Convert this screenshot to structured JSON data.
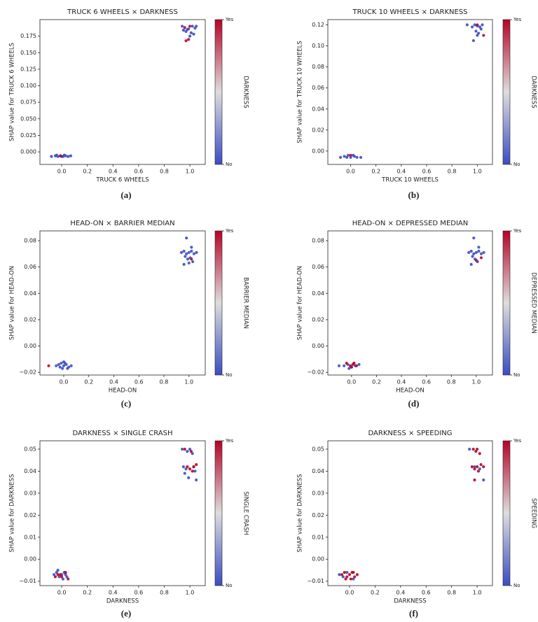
{
  "chart_data": [
    {
      "type": "scatter",
      "title": "TRUCK 6 WHEELS × DARKNESS",
      "xlabel": "TRUCK 6 WHEELS",
      "ylabel": "SHAP value for TRUCK 6 WHEELS",
      "colorbar_label": "DARKNESS",
      "panel_label": "(a)",
      "xlim": [
        -0.17,
        1.12
      ],
      "ylim": [
        -0.019,
        0.2
      ],
      "xticks": [
        {
          "value": 0,
          "label": "0.0"
        },
        0.2,
        0.4,
        0.6,
        0.8,
        {
          "value": 1,
          "label": "1.0"
        }
      ],
      "yticks": [
        {
          "value": 0,
          "label": "0.000"
        },
        {
          "value": 0.025,
          "label": "0.025"
        },
        {
          "value": 0.05,
          "label": "0.050"
        },
        {
          "value": 0.075,
          "label": "0.075"
        },
        {
          "value": 0.1,
          "label": "0.100"
        },
        {
          "value": 0.125,
          "label": "0.125"
        },
        {
          "value": 0.15,
          "label": "0.150"
        },
        {
          "value": 0.175,
          "label": "0.175"
        }
      ],
      "series": [
        {
          "name": "No",
          "color": "#3b4cc0",
          "x": [
            -0.08,
            -0.05,
            -0.03,
            -0.01,
            0.01,
            0.03,
            0.05,
            0.07,
            -0.04,
            0.02,
            0.0,
            0.94,
            0.98,
            1.02,
            1.04,
            1.05,
            0.97,
            1.01,
            1.03,
            0.99,
            1.0,
            0.95
          ],
          "values": [
            -0.007,
            -0.006,
            -0.007,
            -0.006,
            -0.007,
            -0.006,
            -0.007,
            -0.006,
            -0.005,
            -0.005,
            -0.007,
            0.19,
            0.185,
            0.19,
            0.187,
            0.19,
            0.182,
            0.18,
            0.178,
            0.186,
            0.175,
            0.184
          ]
        },
        {
          "name": "Yes",
          "color": "#b40426",
          "x": [
            -0.01,
            0.97,
            0.99,
            1.0,
            0.96
          ],
          "values": [
            -0.006,
            0.168,
            0.17,
            0.19,
            0.188
          ]
        }
      ]
    },
    {
      "type": "scatter",
      "title": "TRUCK 10 WHEELS × DARKNESS",
      "xlabel": "TRUCK 10 WHEELS",
      "ylabel": "SHAP value for TRUCK 10 WHEELS",
      "colorbar_label": "DARKNESS",
      "panel_label": "(b)",
      "xlim": [
        -0.18,
        1.12
      ],
      "ylim": [
        -0.0127,
        0.125
      ],
      "xticks": [
        {
          "value": 0,
          "label": "0.0"
        },
        0.2,
        0.4,
        0.6,
        0.8,
        {
          "value": 1,
          "label": "1.0"
        }
      ],
      "yticks": [
        {
          "value": 0,
          "label": "0.00"
        },
        0.02,
        0.04,
        0.06,
        {
          "value": 0.08,
          "label": "0.08"
        },
        {
          "value": 0.1,
          "label": "0.10"
        },
        0.12
      ],
      "series": [
        {
          "name": "No",
          "color": "#3b4cc0",
          "x": [
            -0.08,
            -0.05,
            -0.03,
            0.0,
            0.03,
            0.05,
            0.08,
            -0.02,
            0.02,
            0.92,
            0.96,
            0.98,
            1.0,
            1.02,
            1.04,
            0.99,
            1.01,
            0.97,
            1.03,
            1.0
          ],
          "values": [
            -0.006,
            -0.005,
            -0.006,
            -0.006,
            -0.005,
            -0.006,
            -0.006,
            -0.004,
            -0.004,
            0.12,
            0.118,
            0.12,
            0.119,
            0.118,
            0.12,
            0.114,
            0.112,
            0.105,
            0.116,
            0.11
          ]
        },
        {
          "name": "Yes",
          "color": "#b40426",
          "x": [
            0.0,
            1.05,
            1.0
          ],
          "values": [
            -0.004,
            0.11,
            0.12
          ]
        }
      ]
    },
    {
      "type": "scatter",
      "title": "HEAD-ON × BARRIER MEDIAN",
      "xlabel": "HEAD-ON",
      "ylabel": "SHAP value for HEAD-ON",
      "colorbar_label": "BARRIER MEDIAN",
      "panel_label": "(c)",
      "xlim": [
        -0.19,
        1.13
      ],
      "ylim": [
        -0.022,
        0.0874
      ],
      "xticks": [
        {
          "value": 0,
          "label": "0.0"
        },
        0.2,
        0.4,
        0.6,
        0.8,
        {
          "value": 1,
          "label": "1.0"
        }
      ],
      "yticks": [
        {
          "value": -0.02,
          "label": "−0.02"
        },
        {
          "value": 0,
          "label": "0.00"
        },
        0.02,
        0.04,
        0.06,
        0.08
      ],
      "series": [
        {
          "name": "No",
          "color": "#3b4cc0",
          "x": [
            -0.06,
            -0.04,
            -0.02,
            0.0,
            0.02,
            0.04,
            0.06,
            -0.03,
            0.01,
            0.03,
            -0.01,
            0.0,
            0.94,
            0.96,
            0.98,
            1.0,
            1.02,
            1.04,
            1.06,
            0.97,
            0.99,
            1.01,
            1.03,
            0.98,
            0.96,
            1.0,
            1.02
          ],
          "values": [
            -0.015,
            -0.014,
            -0.013,
            -0.015,
            -0.014,
            -0.016,
            -0.015,
            -0.016,
            -0.013,
            -0.017,
            -0.017,
            -0.012,
            0.071,
            0.072,
            0.07,
            0.071,
            0.072,
            0.07,
            0.071,
            0.068,
            0.066,
            0.067,
            0.064,
            0.082,
            0.062,
            0.063,
            0.075
          ]
        },
        {
          "name": "Yes",
          "color": "#b40426",
          "x": [
            -0.12,
            1.02
          ],
          "values": [
            -0.015,
            0.066
          ]
        }
      ]
    },
    {
      "type": "scatter",
      "title": "HEAD-ON × DEPRESSED MEDIAN",
      "xlabel": "HEAD-ON",
      "ylabel": "SHAP value for HEAD-ON",
      "colorbar_label": "DEPRESSED MEDIAN",
      "panel_label": "(d)",
      "xlim": [
        -0.19,
        1.13
      ],
      "ylim": [
        -0.022,
        0.0874
      ],
      "xticks": [
        {
          "value": 0,
          "label": "0.0"
        },
        0.2,
        0.4,
        0.6,
        0.8,
        {
          "value": 1,
          "label": "1.0"
        }
      ],
      "yticks": [
        {
          "value": -0.02,
          "label": "−0.02"
        },
        {
          "value": 0,
          "label": "0.00"
        },
        0.02,
        0.04,
        0.06,
        0.08
      ],
      "series": [
        {
          "name": "No",
          "color": "#3b4cc0",
          "x": [
            -0.1,
            -0.06,
            -0.03,
            0.0,
            0.03,
            0.06,
            -0.02,
            0.02,
            0.94,
            0.96,
            0.98,
            1.0,
            1.02,
            1.04,
            1.06,
            0.97,
            0.99,
            1.01,
            0.98,
            0.96,
            1.02
          ],
          "values": [
            -0.015,
            -0.015,
            -0.014,
            -0.016,
            -0.015,
            -0.014,
            -0.017,
            -0.013,
            0.071,
            0.072,
            0.07,
            0.071,
            0.072,
            0.07,
            0.071,
            0.068,
            0.066,
            0.064,
            0.082,
            0.062,
            0.075
          ]
        },
        {
          "name": "Yes",
          "color": "#b40426",
          "x": [
            -0.04,
            -0.01,
            0.01,
            0.04,
            0.0,
            0.02,
            1.0,
            1.04
          ],
          "values": [
            -0.013,
            -0.015,
            -0.014,
            -0.015,
            -0.016,
            -0.013,
            0.065,
            0.067
          ]
        }
      ]
    },
    {
      "type": "scatter",
      "title": "DARKNESS × SINGLE CRASH",
      "xlabel": "DARKNESS",
      "ylabel": "SHAP value for DARKNESS",
      "colorbar_label": "SINGLE CRASH",
      "panel_label": "(e)",
      "xlim": [
        -0.17,
        1.12
      ],
      "ylim": [
        -0.012,
        0.0538
      ],
      "xticks": [
        {
          "value": 0,
          "label": "0.0"
        },
        0.2,
        0.4,
        0.6,
        0.8,
        {
          "value": 1,
          "label": "1.0"
        }
      ],
      "yticks": [
        {
          "value": -0.01,
          "label": "−0.01"
        },
        {
          "value": 0,
          "label": "0.00"
        },
        0.01,
        0.02,
        0.03,
        0.04,
        0.05
      ],
      "series": [
        {
          "name": "No",
          "color": "#3b4cc0",
          "x": [
            -0.06,
            -0.04,
            -0.02,
            0.0,
            0.02,
            0.04,
            -0.03,
            0.01,
            0.03,
            0.94,
            0.98,
            1.0,
            1.02,
            0.95,
            0.97,
            1.03,
            1.05,
            0.99,
            0.96,
            1.04
          ],
          "values": [
            -0.007,
            -0.006,
            -0.008,
            -0.007,
            -0.006,
            -0.008,
            -0.005,
            -0.009,
            -0.007,
            0.05,
            0.049,
            0.05,
            0.048,
            0.042,
            0.041,
            0.042,
            0.036,
            0.037,
            0.039,
            0.04
          ]
        },
        {
          "name": "Yes",
          "color": "#b40426",
          "x": [
            -0.05,
            -0.01,
            0.03,
            0.05,
            -0.03,
            0.0,
            0.96,
            1.01,
            1.03,
            0.98,
            1.0,
            1.05,
            1.02
          ],
          "values": [
            -0.008,
            -0.007,
            -0.006,
            -0.009,
            -0.007,
            -0.008,
            0.05,
            0.049,
            0.042,
            0.042,
            0.041,
            0.043,
            0.04
          ]
        }
      ]
    },
    {
      "type": "scatter",
      "title": "DARKNESS × SPEEDING",
      "xlabel": "DARKNESS",
      "ylabel": "SHAP value for DARKNESS",
      "colorbar_label": "SPEEDING",
      "panel_label": "(f)",
      "xlim": [
        -0.17,
        1.12
      ],
      "ylim": [
        -0.012,
        0.0538
      ],
      "xticks": [
        {
          "value": 0,
          "label": "0.0"
        },
        0.2,
        0.4,
        0.6,
        0.8,
        {
          "value": 1,
          "label": "1.0"
        }
      ],
      "yticks": [
        {
          "value": -0.01,
          "label": "−0.01"
        },
        {
          "value": 0,
          "label": "0.00"
        },
        0.01,
        0.02,
        0.03,
        0.04,
        0.05
      ],
      "series": [
        {
          "name": "No",
          "color": "#3b4cc0",
          "x": [
            -0.08,
            -0.05,
            -0.02,
            0.03,
            0.94,
            0.98,
            1.05,
            1.02
          ],
          "values": [
            -0.007,
            -0.008,
            -0.006,
            -0.009,
            0.05,
            0.042,
            0.036,
            0.041
          ]
        },
        {
          "name": "Yes",
          "color": "#b40426",
          "x": [
            -0.06,
            -0.04,
            -0.02,
            0.0,
            0.02,
            0.04,
            0.06,
            -0.03,
            0.01,
            0.03,
            0.97,
            0.99,
            1.0,
            1.02,
            0.96,
            0.98,
            1.0,
            1.03,
            1.05,
            0.98,
            1.01
          ],
          "values": [
            -0.007,
            -0.006,
            -0.008,
            -0.007,
            -0.006,
            -0.008,
            -0.007,
            -0.009,
            -0.009,
            -0.006,
            0.05,
            0.049,
            0.05,
            0.048,
            0.042,
            0.041,
            0.042,
            0.043,
            0.042,
            0.036,
            0.04
          ]
        }
      ]
    }
  ]
}
